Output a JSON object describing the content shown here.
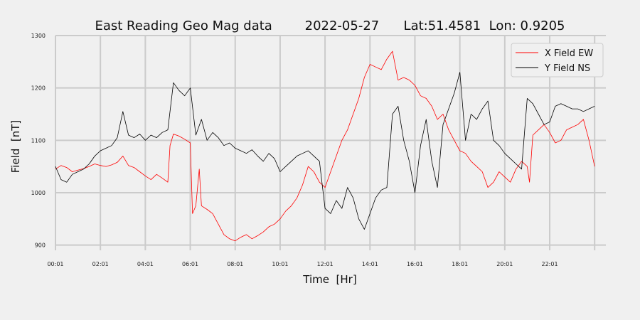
{
  "chart_data": {
    "type": "line",
    "title": "East Reading Geo Mag data        2022-05-27      Lat:51.4581  Lon: 0.9205",
    "xlabel": "Time  [Hr]",
    "ylabel": "Field  [nT]",
    "xlim": [
      0,
      24.5
    ],
    "ylim": [
      890,
      1300
    ],
    "x_ticks": [
      {
        "value": 0,
        "label": "00:01"
      },
      {
        "value": 2,
        "label": "02:01"
      },
      {
        "value": 4,
        "label": "04:01"
      },
      {
        "value": 6,
        "label": "06:01"
      },
      {
        "value": 8,
        "label": "08:01"
      },
      {
        "value": 10,
        "label": "10:01"
      },
      {
        "value": 12,
        "label": "12:01"
      },
      {
        "value": 14,
        "label": "14:01"
      },
      {
        "value": 16,
        "label": "16:01"
      },
      {
        "value": 18,
        "label": "18:01"
      },
      {
        "value": 20,
        "label": "20:01"
      },
      {
        "value": 22,
        "label": "22:01"
      }
    ],
    "y_ticks": [
      900,
      1000,
      1100,
      1200,
      1300
    ],
    "extra_vgrid": [
      24
    ],
    "grid": true,
    "legend_position": "top-right",
    "series": [
      {
        "name": "X Field EW",
        "color": "#ff0000",
        "x": [
          0,
          0.25,
          0.5,
          0.75,
          1.0,
          1.25,
          1.5,
          1.75,
          2.0,
          2.25,
          2.5,
          2.75,
          3.0,
          3.25,
          3.5,
          3.75,
          4.0,
          4.25,
          4.5,
          4.75,
          5.0,
          5.1,
          5.25,
          5.5,
          5.75,
          6.0,
          6.1,
          6.25,
          6.4,
          6.5,
          6.75,
          7.0,
          7.25,
          7.5,
          7.75,
          8.0,
          8.25,
          8.5,
          8.75,
          9.0,
          9.25,
          9.5,
          9.75,
          10.0,
          10.25,
          10.5,
          10.75,
          11.0,
          11.25,
          11.5,
          11.75,
          12.0,
          12.25,
          12.5,
          12.75,
          13.0,
          13.25,
          13.5,
          13.75,
          14.0,
          14.25,
          14.5,
          14.75,
          15.0,
          15.25,
          15.5,
          15.75,
          16.0,
          16.25,
          16.5,
          16.75,
          17.0,
          17.25,
          17.5,
          17.75,
          18.0,
          18.25,
          18.5,
          18.75,
          19.0,
          19.25,
          19.5,
          19.75,
          20.0,
          20.25,
          20.5,
          20.75,
          21.0,
          21.1,
          21.25,
          21.5,
          21.75,
          22.0,
          22.25,
          22.5,
          22.75,
          23.0,
          23.25,
          23.5,
          23.75,
          24.0
        ],
        "values": [
          1045,
          1052,
          1048,
          1040,
          1043,
          1046,
          1050,
          1055,
          1052,
          1050,
          1053,
          1058,
          1070,
          1052,
          1048,
          1040,
          1032,
          1025,
          1035,
          1028,
          1020,
          1090,
          1112,
          1108,
          1102,
          1095,
          960,
          975,
          1045,
          975,
          968,
          960,
          940,
          920,
          912,
          908,
          915,
          920,
          912,
          918,
          925,
          935,
          940,
          950,
          965,
          975,
          990,
          1015,
          1050,
          1040,
          1020,
          1010,
          1040,
          1070,
          1100,
          1120,
          1150,
          1180,
          1220,
          1245,
          1240,
          1235,
          1255,
          1270,
          1215,
          1220,
          1215,
          1205,
          1185,
          1180,
          1165,
          1140,
          1150,
          1120,
          1100,
          1080,
          1075,
          1060,
          1050,
          1040,
          1010,
          1020,
          1040,
          1030,
          1020,
          1045,
          1060,
          1050,
          1020,
          1110,
          1120,
          1130,
          1115,
          1095,
          1100,
          1120,
          1125,
          1130,
          1140,
          1100,
          1050
        ]
      },
      {
        "name": "Y Field NS",
        "color": "#000000",
        "x": [
          0,
          0.25,
          0.5,
          0.75,
          1.0,
          1.25,
          1.5,
          1.75,
          2.0,
          2.25,
          2.5,
          2.75,
          3.0,
          3.25,
          3.5,
          3.75,
          4.0,
          4.25,
          4.5,
          4.75,
          5.0,
          5.25,
          5.5,
          5.75,
          6.0,
          6.25,
          6.5,
          6.75,
          7.0,
          7.25,
          7.5,
          7.75,
          8.0,
          8.25,
          8.5,
          8.75,
          9.0,
          9.25,
          9.5,
          9.75,
          10.0,
          10.25,
          10.5,
          10.75,
          11.0,
          11.25,
          11.5,
          11.75,
          12.0,
          12.25,
          12.5,
          12.75,
          13.0,
          13.25,
          13.5,
          13.75,
          14.0,
          14.25,
          14.5,
          14.75,
          15.0,
          15.25,
          15.5,
          15.75,
          16.0,
          16.25,
          16.5,
          16.75,
          17.0,
          17.25,
          17.5,
          17.75,
          18.0,
          18.25,
          18.5,
          18.75,
          19.0,
          19.25,
          19.5,
          19.75,
          20.0,
          20.25,
          20.5,
          20.75,
          21.0,
          21.25,
          21.5,
          21.75,
          22.0,
          22.25,
          22.5,
          22.75,
          23.0,
          23.25,
          23.5,
          23.75,
          24.0
        ],
        "values": [
          1050,
          1025,
          1020,
          1035,
          1040,
          1045,
          1055,
          1070,
          1080,
          1085,
          1090,
          1105,
          1155,
          1110,
          1105,
          1112,
          1100,
          1110,
          1105,
          1115,
          1120,
          1210,
          1195,
          1185,
          1200,
          1110,
          1140,
          1100,
          1115,
          1105,
          1090,
          1095,
          1085,
          1080,
          1075,
          1082,
          1070,
          1060,
          1075,
          1065,
          1040,
          1050,
          1060,
          1070,
          1075,
          1080,
          1070,
          1060,
          970,
          960,
          985,
          970,
          1010,
          990,
          950,
          930,
          960,
          990,
          1005,
          1010,
          1150,
          1165,
          1100,
          1060,
          1000,
          1090,
          1140,
          1060,
          1010,
          1130,
          1160,
          1190,
          1230,
          1100,
          1150,
          1140,
          1160,
          1175,
          1100,
          1090,
          1075,
          1065,
          1055,
          1045,
          1180,
          1170,
          1150,
          1130,
          1135,
          1165,
          1170,
          1165,
          1160,
          1160,
          1155,
          1160,
          1165
        ]
      }
    ]
  }
}
